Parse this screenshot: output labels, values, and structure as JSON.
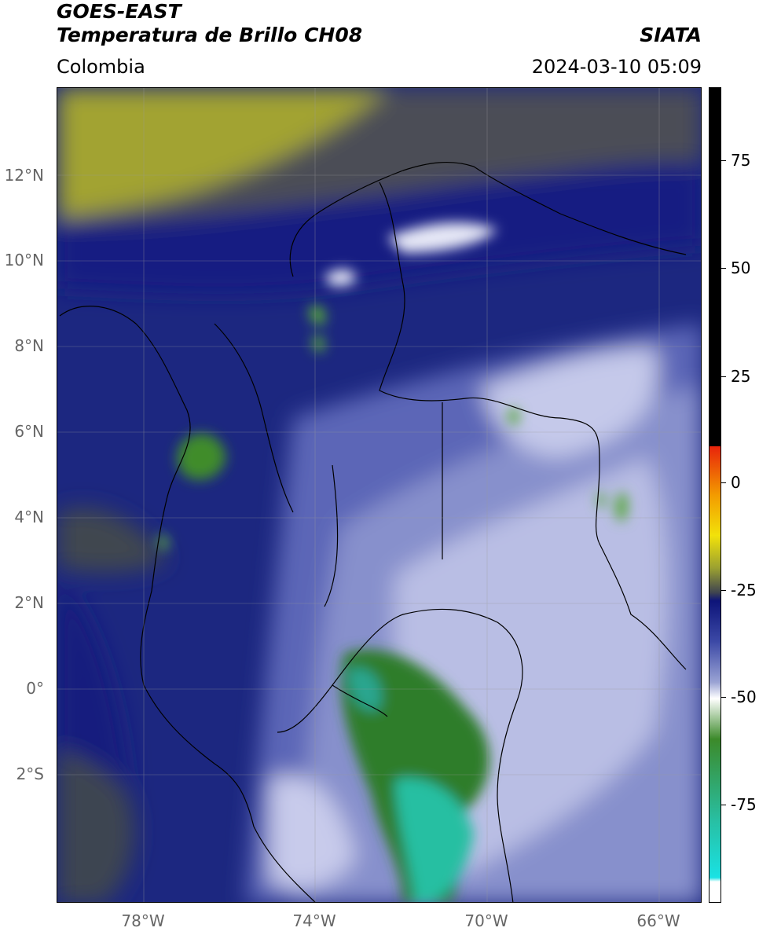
{
  "header": {
    "satellite": "GOES-EAST",
    "product": "Temperatura de Brillo CH08",
    "brand": "SIATA",
    "region": "Colombia",
    "datetime": "2024-03-10 05:09"
  },
  "map": {
    "lat_labels": [
      "12°N",
      "10°N",
      "8°N",
      "6°N",
      "4°N",
      "2°N",
      "0°",
      "2°S"
    ],
    "lon_labels": [
      "78°W",
      "74°W",
      "70°W",
      "66°W"
    ]
  },
  "colorbar": {
    "labels": [
      "75",
      "50",
      "25",
      "0",
      "-25",
      "-50",
      "-75"
    ],
    "colors": {
      "black": "#000000",
      "red": "#e8230b",
      "orange": "#f39b00",
      "yellow": "#f2e20a",
      "olive": "#9aa031",
      "dark_gray": "#3f4450",
      "navy": "#0d1479",
      "blue": "#3c49a6",
      "lavender": "#9aa3d4",
      "white": "#ffffff",
      "green": "#3c8a2a",
      "teal": "#28bfa3",
      "cyan": "#19e2e4"
    }
  }
}
